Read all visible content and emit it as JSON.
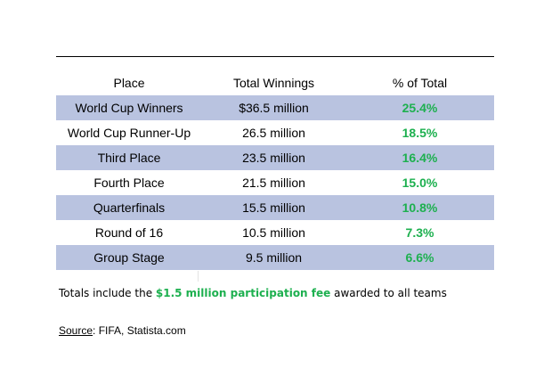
{
  "chart_data": {
    "type": "table",
    "columns": [
      "Place",
      "Total Winnings",
      "% of Total"
    ],
    "rows": [
      {
        "place": "World Cup Winners",
        "winnings": "$36.5 million",
        "percent": "25.4%"
      },
      {
        "place": "World Cup Runner-Up",
        "winnings": "26.5 million",
        "percent": "18.5%"
      },
      {
        "place": "Third Place",
        "winnings": "23.5 million",
        "percent": "16.4%"
      },
      {
        "place": "Fourth Place",
        "winnings": "21.5 million",
        "percent": "15.0%"
      },
      {
        "place": "Quarterfinals",
        "winnings": "15.5 million",
        "percent": "10.8%"
      },
      {
        "place": "Round of 16",
        "winnings": "10.5 million",
        "percent": "7.3%"
      },
      {
        "place": "Group Stage",
        "winnings": "9.5 million",
        "percent": "6.6%"
      }
    ],
    "row_shading": [
      true,
      false,
      true,
      false,
      true,
      false,
      true
    ]
  },
  "note": {
    "prefix": "Totals include the ",
    "highlight": "$1.5 million participation fee",
    "suffix": " awarded to all teams"
  },
  "source": {
    "label": "Source",
    "text": ": FIFA, Statista.com"
  },
  "colors": {
    "shade": "#b9c3e0",
    "highlight_green": "#1db04f"
  }
}
